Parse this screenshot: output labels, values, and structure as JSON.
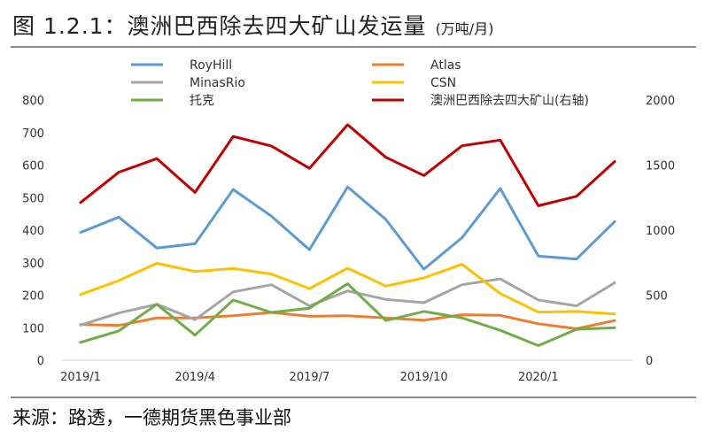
{
  "header": {
    "title": "图 1.2.1：澳洲巴西除去四大矿山发运量",
    "unit": "(万吨/月)"
  },
  "footer": {
    "source": "来源：路透，一德期货黑色事业部"
  },
  "chart_data": {
    "type": "line",
    "x_tick_labels": [
      "2019/1",
      "2019/4",
      "2019/7",
      "2019/10",
      "2020/1"
    ],
    "x": [
      "2019/1",
      "2019/2",
      "2019/3",
      "2019/4",
      "2019/5",
      "2019/6",
      "2019/7",
      "2019/8",
      "2019/9",
      "2019/10",
      "2019/11",
      "2019/12",
      "2020/1",
      "2020/2",
      "2020/3"
    ],
    "ylim_left": [
      0,
      800
    ],
    "yticks_left": [
      "0",
      "100",
      "200",
      "300",
      "400",
      "500",
      "600",
      "700",
      "800"
    ],
    "ylim_right": [
      0,
      2000
    ],
    "yticks_right": [
      "0",
      "500",
      "1000",
      "1500",
      "2000"
    ],
    "grid": false,
    "legend_position": "top",
    "series": [
      {
        "name": "RoyHill",
        "color": "#5b9bd5",
        "axis": "left",
        "values": [
          393,
          440,
          345,
          358,
          525,
          443,
          340,
          533,
          433,
          280,
          377,
          528,
          320,
          311,
          426
        ]
      },
      {
        "name": "Atlas",
        "color": "#ed7d31",
        "axis": "left",
        "values": [
          110,
          107,
          130,
          130,
          137,
          147,
          135,
          137,
          130,
          123,
          140,
          138,
          112,
          97,
          122
        ]
      },
      {
        "name": "MinasRio",
        "color": "#a5a5a5",
        "axis": "left",
        "values": [
          108,
          145,
          172,
          125,
          210,
          232,
          167,
          213,
          187,
          177,
          232,
          250,
          185,
          167,
          238
        ]
      },
      {
        "name": "CSN",
        "color": "#ffc000",
        "axis": "left",
        "values": [
          202,
          245,
          298,
          273,
          282,
          265,
          220,
          283,
          228,
          253,
          295,
          205,
          148,
          150,
          142
        ]
      },
      {
        "name": "托克",
        "color": "#70ad47",
        "axis": "left",
        "values": [
          55,
          90,
          172,
          77,
          185,
          147,
          160,
          235,
          122,
          150,
          130,
          92,
          45,
          95,
          100
        ]
      },
      {
        "name": "澳洲巴西除去四大矿山(右轴)",
        "color": "#c00000",
        "axis": "right",
        "values": [
          1212,
          1445,
          1550,
          1290,
          1720,
          1647,
          1475,
          1810,
          1560,
          1420,
          1648,
          1692,
          1187,
          1260,
          1527
        ]
      }
    ]
  },
  "colors": {
    "rule": "#8a8a8a",
    "axis": "#d9d9d9"
  }
}
